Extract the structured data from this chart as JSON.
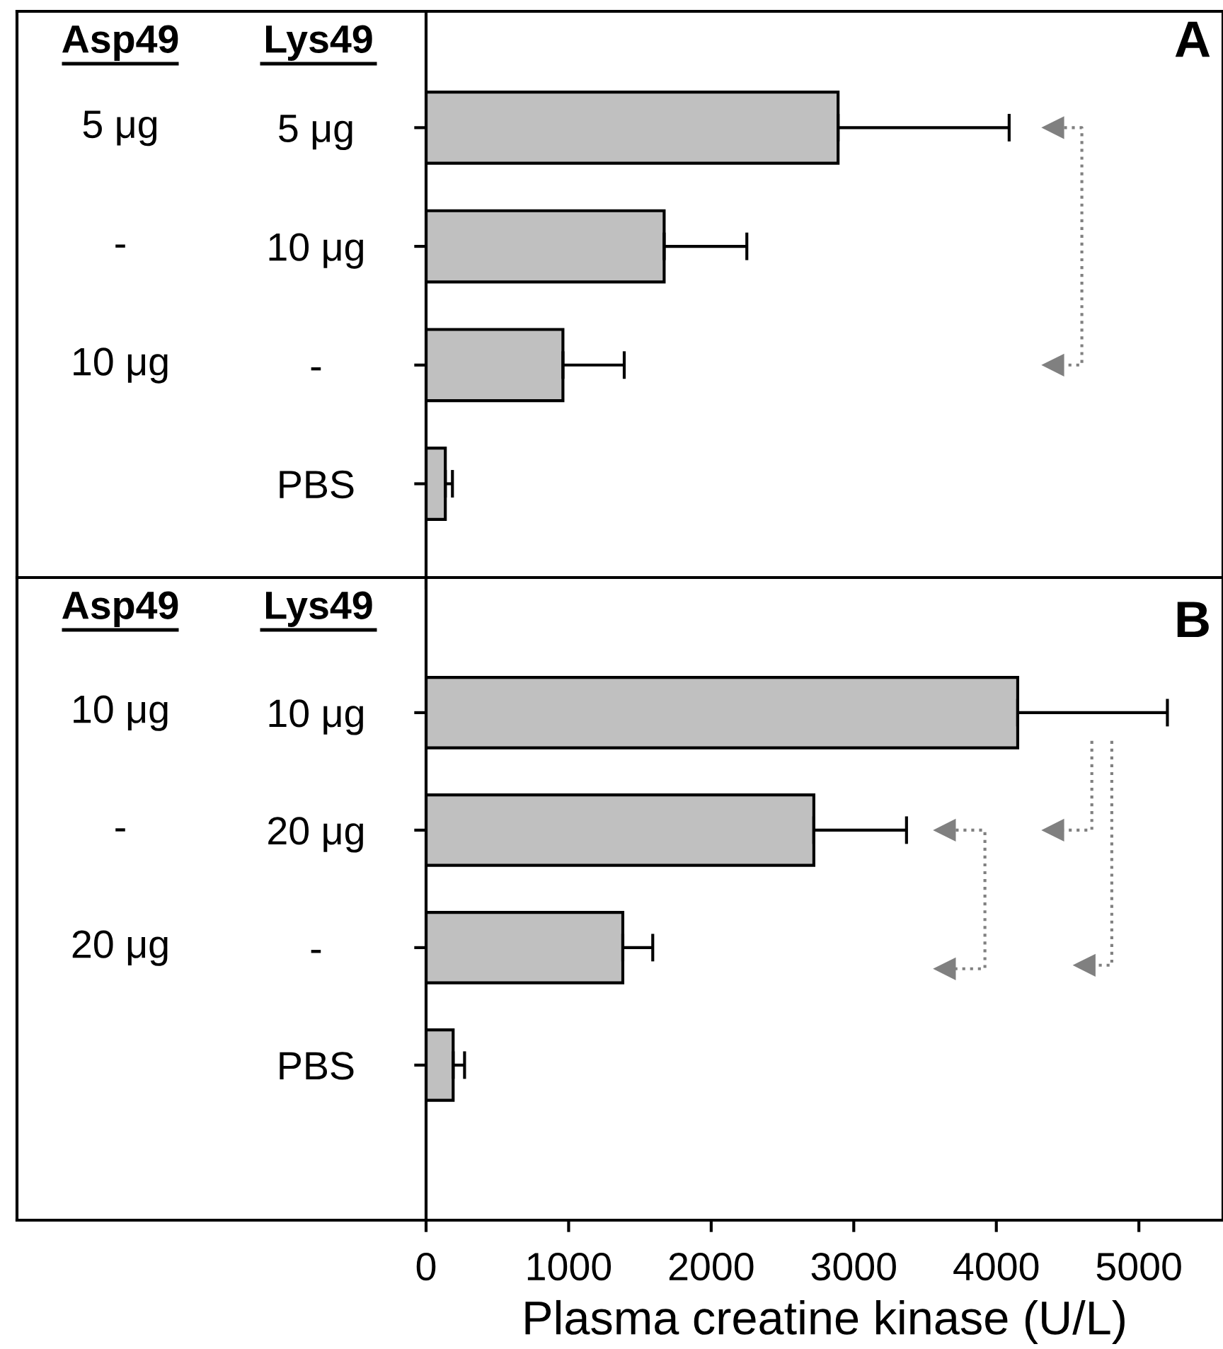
{
  "chart_data": [
    {
      "type": "bar",
      "orientation": "horizontal",
      "title": "A",
      "categories": [
        "5 μg",
        "10 μg",
        "-",
        "PBS"
      ],
      "series": [
        {
          "color": "#c0c0c0",
          "values": [
            2890,
            1670,
            960,
            135
          ],
          "errors": [
            [
              2890,
              4090
            ],
            [
              1670,
              2250
            ],
            [
              960,
              1390
            ],
            [
              135,
              185
            ]
          ]
        }
      ],
      "annotations": [
        "Asp49",
        "Lys49",
        "5 μg",
        "-",
        "10 μg"
      ],
      "xlim": [
        0,
        5590
      ],
      "xticks": [
        0,
        1000,
        2000,
        3000,
        4000,
        5000
      ],
      "tick_labels": "y",
      "grid": false,
      "legend": false
    },
    {
      "type": "bar",
      "orientation": "horizontal",
      "title": "B",
      "categories": [
        "10 μg",
        "20 μg",
        "-",
        "PBS"
      ],
      "series": [
        {
          "color": "#c0c0c0",
          "values": [
            4150,
            2720,
            1380,
            190
          ],
          "errors": [
            [
              4150,
              5200
            ],
            [
              2720,
              3370
            ],
            [
              1380,
              1590
            ],
            [
              190,
              270
            ]
          ]
        }
      ],
      "annotations": [
        "Asp49",
        "Lys49",
        "10 μg",
        "-",
        "20 μg"
      ],
      "xlabel": "Plasma creatine kinase (U/L)",
      "xlim": [
        0,
        5590
      ],
      "xticks": [
        0,
        1000,
        2000,
        3000,
        4000,
        5000
      ],
      "grid": false,
      "legend": false
    }
  ]
}
